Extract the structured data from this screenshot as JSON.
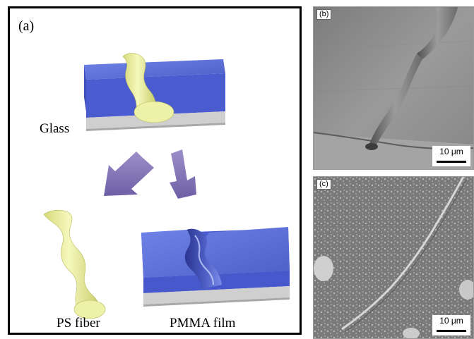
{
  "panel_a": {
    "letter": "(a)",
    "label_glass": "Glass",
    "label_ps_fiber": "PS fiber",
    "label_pmma_film": "PMMA film",
    "colors": {
      "film_blue": "#5b6fd6",
      "fiber_yellow": "#ecefa3",
      "glass_gray": "#cfcfcf",
      "arrow_purple": "#8a7bb8"
    }
  },
  "panel_b": {
    "letter": "(b)",
    "scale_label": "10 μm"
  },
  "panel_c": {
    "letter": "(c)",
    "scale_label": "10 μm"
  }
}
